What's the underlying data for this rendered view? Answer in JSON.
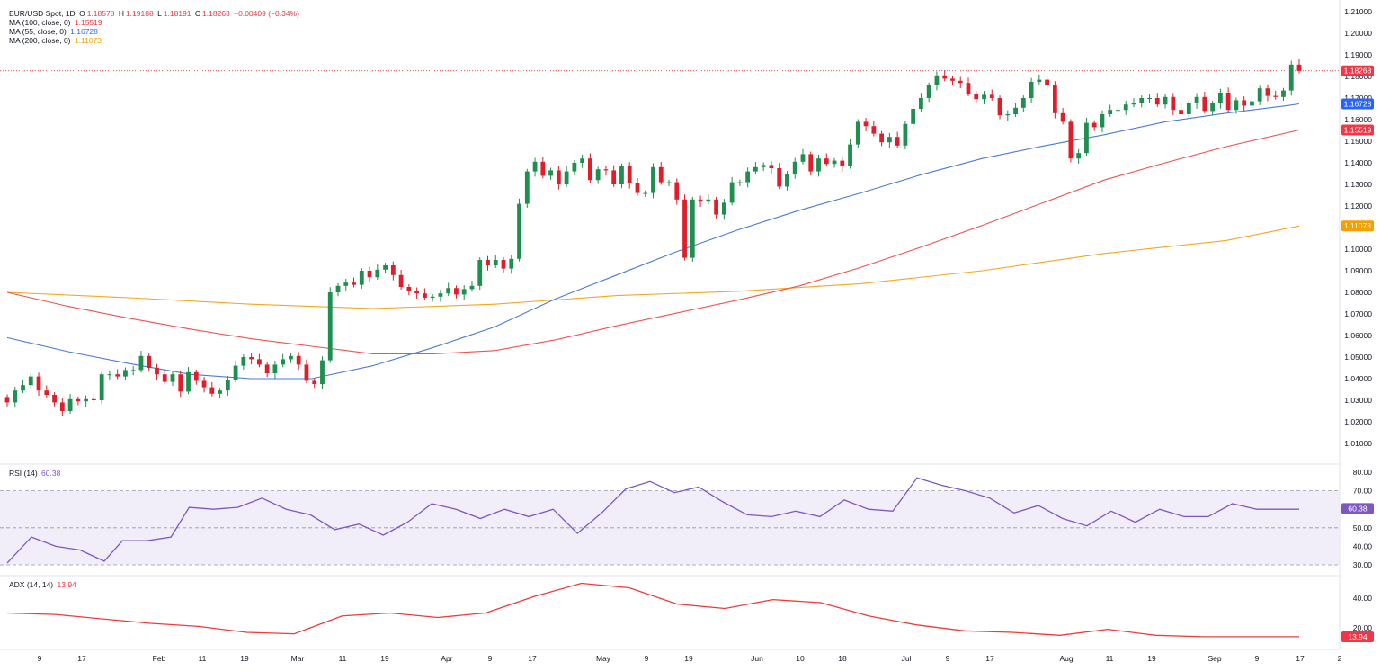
{
  "header": {
    "symbol": "EUR/USD Spot, 1D",
    "open_label": "O",
    "open": "1.18578",
    "high_label": "H",
    "high": "1.19188",
    "low_label": "L",
    "low": "1.18191",
    "close_label": "C",
    "close": "1.18263",
    "change": "−0.00409 (−0.34%)"
  },
  "ma_legend": [
    {
      "label": "MA (100, close, 0)",
      "value": "1.15519",
      "color": "#f23645"
    },
    {
      "label": "MA (55, close, 0)",
      "value": "1.16728",
      "color": "#2962ff"
    },
    {
      "label": "MA (200, close, 0)",
      "value": "1.11073",
      "color": "#f59f00"
    }
  ],
  "rsi_legend": {
    "label": "RSI (14)",
    "value": "60.38"
  },
  "adx_legend": {
    "label": "ADX (14, 14)",
    "value": "13.94"
  },
  "colors": {
    "up": "#1e8f4e",
    "down": "#e01e2b",
    "ma55": "#4a7bd8",
    "ma100": "#ef5350",
    "ma200": "#f5a623",
    "rsi": "#7e57c2",
    "adx": "#ef3b3b"
  },
  "chart_data": {
    "type": "candlestick",
    "title": "EUR/USD Spot, 1D",
    "x_tick_labels": [
      "9",
      "17",
      "Feb",
      "11",
      "19",
      "Mar",
      "11",
      "19",
      "Apr",
      "9",
      "17",
      "May",
      "9",
      "19",
      "Jun",
      "10",
      "18",
      "Jul",
      "9",
      "17",
      "Aug",
      "11",
      "19",
      "Sep",
      "9",
      "17",
      "2"
    ],
    "price_axis": {
      "ylim": [
        1.005,
        1.215
      ],
      "tick_labels": [
        "1.21000",
        "1.20000",
        "1.19000",
        "1.18000",
        "1.17000",
        "1.16000",
        "1.15000",
        "1.14000",
        "1.13000",
        "1.12000",
        "1.11000",
        "1.10000",
        "1.09000",
        "1.08000",
        "1.07000",
        "1.06000",
        "1.05000",
        "1.04000",
        "1.03000",
        "1.02000",
        "1.01000"
      ]
    },
    "price_line": {
      "value": 1.18263,
      "label": "1.18263"
    },
    "badges": [
      {
        "label": "1.18263",
        "value": 1.18263,
        "color": "#f23645"
      },
      {
        "label": "1.16728",
        "value": 1.16728,
        "color": "#2962ff"
      },
      {
        "label": "1.15519",
        "value": 1.15519,
        "color": "#f23645"
      },
      {
        "label": "1.11073",
        "value": 1.11073,
        "color": "#f59f00"
      }
    ],
    "candle_closes": [
      1.029,
      1.0345,
      1.037,
      1.041,
      1.0345,
      1.0325,
      1.029,
      1.025,
      1.0305,
      1.0295,
      1.0305,
      1.03,
      1.042,
      1.042,
      1.041,
      1.044,
      1.044,
      1.0505,
      1.045,
      1.042,
      1.0385,
      1.042,
      1.034,
      1.043,
      1.039,
      1.036,
      1.033,
      1.0345,
      1.0395,
      1.046,
      1.05,
      1.049,
      1.0465,
      1.0425,
      1.0465,
      1.049,
      1.0505,
      1.0465,
      1.039,
      1.0375,
      1.0485,
      1.08,
      1.083,
      1.0845,
      1.0835,
      1.09,
      1.087,
      1.0905,
      1.0925,
      1.088,
      1.0825,
      1.0805,
      1.0795,
      1.0775,
      1.078,
      1.0795,
      1.082,
      1.079,
      1.0815,
      1.083,
      1.095,
      1.0925,
      1.095,
      1.091,
      1.0955,
      1.121,
      1.136,
      1.1405,
      1.134,
      1.1365,
      1.13,
      1.136,
      1.14,
      1.142,
      1.132,
      1.137,
      1.1365,
      1.13,
      1.1385,
      1.1305,
      1.126,
      1.126,
      1.138,
      1.131,
      1.131,
      1.123,
      1.096,
      1.123,
      1.122,
      1.123,
      1.116,
      1.1215,
      1.131,
      1.131,
      1.136,
      1.138,
      1.139,
      1.1375,
      1.129,
      1.135,
      1.1405,
      1.144,
      1.136,
      1.142,
      1.1395,
      1.141,
      1.1385,
      1.1485,
      1.159,
      1.157,
      1.1535,
      1.1495,
      1.152,
      1.148,
      1.158,
      1.165,
      1.17,
      1.176,
      1.1805,
      1.179,
      1.178,
      1.177,
      1.172,
      1.1695,
      1.1715,
      1.17,
      1.162,
      1.1625,
      1.1655,
      1.17,
      1.1775,
      1.1785,
      1.176,
      1.163,
      1.159,
      1.142,
      1.1445,
      1.1585,
      1.1565,
      1.1625,
      1.1645,
      1.1645,
      1.167,
      1.1675,
      1.17,
      1.17,
      1.167,
      1.1705,
      1.1645,
      1.1625,
      1.1675,
      1.1705,
      1.164,
      1.1675,
      1.1725,
      1.1645,
      1.169,
      1.1665,
      1.1685,
      1.1745,
      1.171,
      1.1705,
      1.1735,
      1.1855,
      1.1826
    ],
    "ma55": {
      "label": "MA (55, close, 0)",
      "values": [
        [
          0,
          1.059
        ],
        [
          10,
          1.0525
        ],
        [
          20,
          1.047
        ],
        [
          30,
          1.042
        ],
        [
          40,
          1.04
        ],
        [
          50,
          1.04
        ],
        [
          60,
          1.046
        ],
        [
          70,
          1.0545
        ],
        [
          80,
          1.064
        ],
        [
          90,
          1.077
        ],
        [
          100,
          1.088
        ],
        [
          110,
          1.099
        ],
        [
          120,
          1.109
        ],
        [
          130,
          1.118
        ],
        [
          140,
          1.126
        ],
        [
          150,
          1.1345
        ],
        [
          160,
          1.142
        ],
        [
          170,
          1.1478
        ],
        [
          180,
          1.153
        ],
        [
          190,
          1.159
        ],
        [
          200,
          1.163
        ],
        [
          210,
          1.1665
        ],
        [
          212,
          1.1673
        ]
      ]
    },
    "ma100": {
      "label": "MA (100, close, 0)",
      "values": [
        [
          0,
          1.08
        ],
        [
          10,
          1.0735
        ],
        [
          20,
          1.068
        ],
        [
          30,
          1.063
        ],
        [
          40,
          1.0585
        ],
        [
          50,
          1.055
        ],
        [
          60,
          1.0515
        ],
        [
          70,
          1.0515
        ],
        [
          80,
          1.053
        ],
        [
          90,
          1.058
        ],
        [
          100,
          1.0645
        ],
        [
          110,
          1.0705
        ],
        [
          120,
          1.0765
        ],
        [
          130,
          1.083
        ],
        [
          140,
          1.0915
        ],
        [
          150,
          1.101
        ],
        [
          160,
          1.111
        ],
        [
          170,
          1.1215
        ],
        [
          180,
          1.132
        ],
        [
          190,
          1.14
        ],
        [
          200,
          1.1475
        ],
        [
          212,
          1.1552
        ]
      ]
    },
    "ma200": {
      "label": "MA (200, close, 0)",
      "values": [
        [
          0,
          1.08
        ],
        [
          20,
          1.0775
        ],
        [
          40,
          1.0745
        ],
        [
          60,
          1.0725
        ],
        [
          80,
          1.0745
        ],
        [
          100,
          1.0785
        ],
        [
          120,
          1.0805
        ],
        [
          140,
          1.084
        ],
        [
          160,
          1.09
        ],
        [
          180,
          1.098
        ],
        [
          200,
          1.104
        ],
        [
          212,
          1.1107
        ]
      ]
    },
    "rsi": {
      "label": "RSI (14)",
      "ylim": [
        28,
        82
      ],
      "tick_labels": [
        "80.00",
        "70.00",
        "50.00",
        "40.00",
        "30.00"
      ],
      "bands": [
        70,
        50,
        30
      ],
      "current": 60.38,
      "values": [
        [
          0,
          31
        ],
        [
          4,
          45
        ],
        [
          8,
          40
        ],
        [
          12,
          38
        ],
        [
          16,
          32
        ],
        [
          19,
          43
        ],
        [
          23,
          43
        ],
        [
          27,
          45
        ],
        [
          30,
          61
        ],
        [
          34,
          60
        ],
        [
          38,
          61
        ],
        [
          42,
          66
        ],
        [
          46,
          60
        ],
        [
          50,
          57
        ],
        [
          54,
          49
        ],
        [
          58,
          52
        ],
        [
          62,
          46
        ],
        [
          66,
          53
        ],
        [
          70,
          63
        ],
        [
          74,
          60
        ],
        [
          78,
          55
        ],
        [
          82,
          60
        ],
        [
          86,
          56
        ],
        [
          90,
          60
        ],
        [
          94,
          47
        ],
        [
          98,
          58
        ],
        [
          102,
          71
        ],
        [
          106,
          75
        ],
        [
          110,
          69
        ],
        [
          114,
          72
        ],
        [
          118,
          64
        ],
        [
          122,
          57
        ],
        [
          126,
          56
        ],
        [
          130,
          59
        ],
        [
          134,
          56
        ],
        [
          138,
          65
        ],
        [
          142,
          60
        ],
        [
          146,
          59
        ],
        [
          150,
          77
        ],
        [
          154,
          73
        ],
        [
          158,
          70
        ],
        [
          162,
          66
        ],
        [
          166,
          58
        ],
        [
          170,
          62
        ],
        [
          174,
          55
        ],
        [
          178,
          51
        ],
        [
          182,
          59
        ],
        [
          186,
          53
        ],
        [
          190,
          60
        ],
        [
          194,
          56
        ],
        [
          198,
          56
        ],
        [
          202,
          63
        ],
        [
          206,
          60
        ],
        [
          210,
          60
        ],
        [
          213,
          60
        ]
      ]
    },
    "adx": {
      "label": "ADX (14, 14)",
      "ylim": [
        12,
        52
      ],
      "tick_labels": [
        "40.00",
        "20.00"
      ],
      "current": 13.94,
      "values": [
        [
          0,
          30
        ],
        [
          10,
          29
        ],
        [
          20,
          26
        ],
        [
          30,
          23
        ],
        [
          40,
          21
        ],
        [
          50,
          17
        ],
        [
          60,
          16
        ],
        [
          70,
          28
        ],
        [
          80,
          30
        ],
        [
          90,
          27
        ],
        [
          100,
          30
        ],
        [
          110,
          41
        ],
        [
          120,
          50
        ],
        [
          130,
          47
        ],
        [
          140,
          36
        ],
        [
          150,
          33
        ],
        [
          160,
          39
        ],
        [
          170,
          37
        ],
        [
          180,
          28
        ],
        [
          190,
          22
        ],
        [
          200,
          18
        ],
        [
          210,
          17
        ],
        [
          220,
          15
        ],
        [
          230,
          19
        ],
        [
          240,
          15
        ],
        [
          250,
          14
        ],
        [
          260,
          14
        ],
        [
          270,
          14
        ]
      ]
    }
  }
}
